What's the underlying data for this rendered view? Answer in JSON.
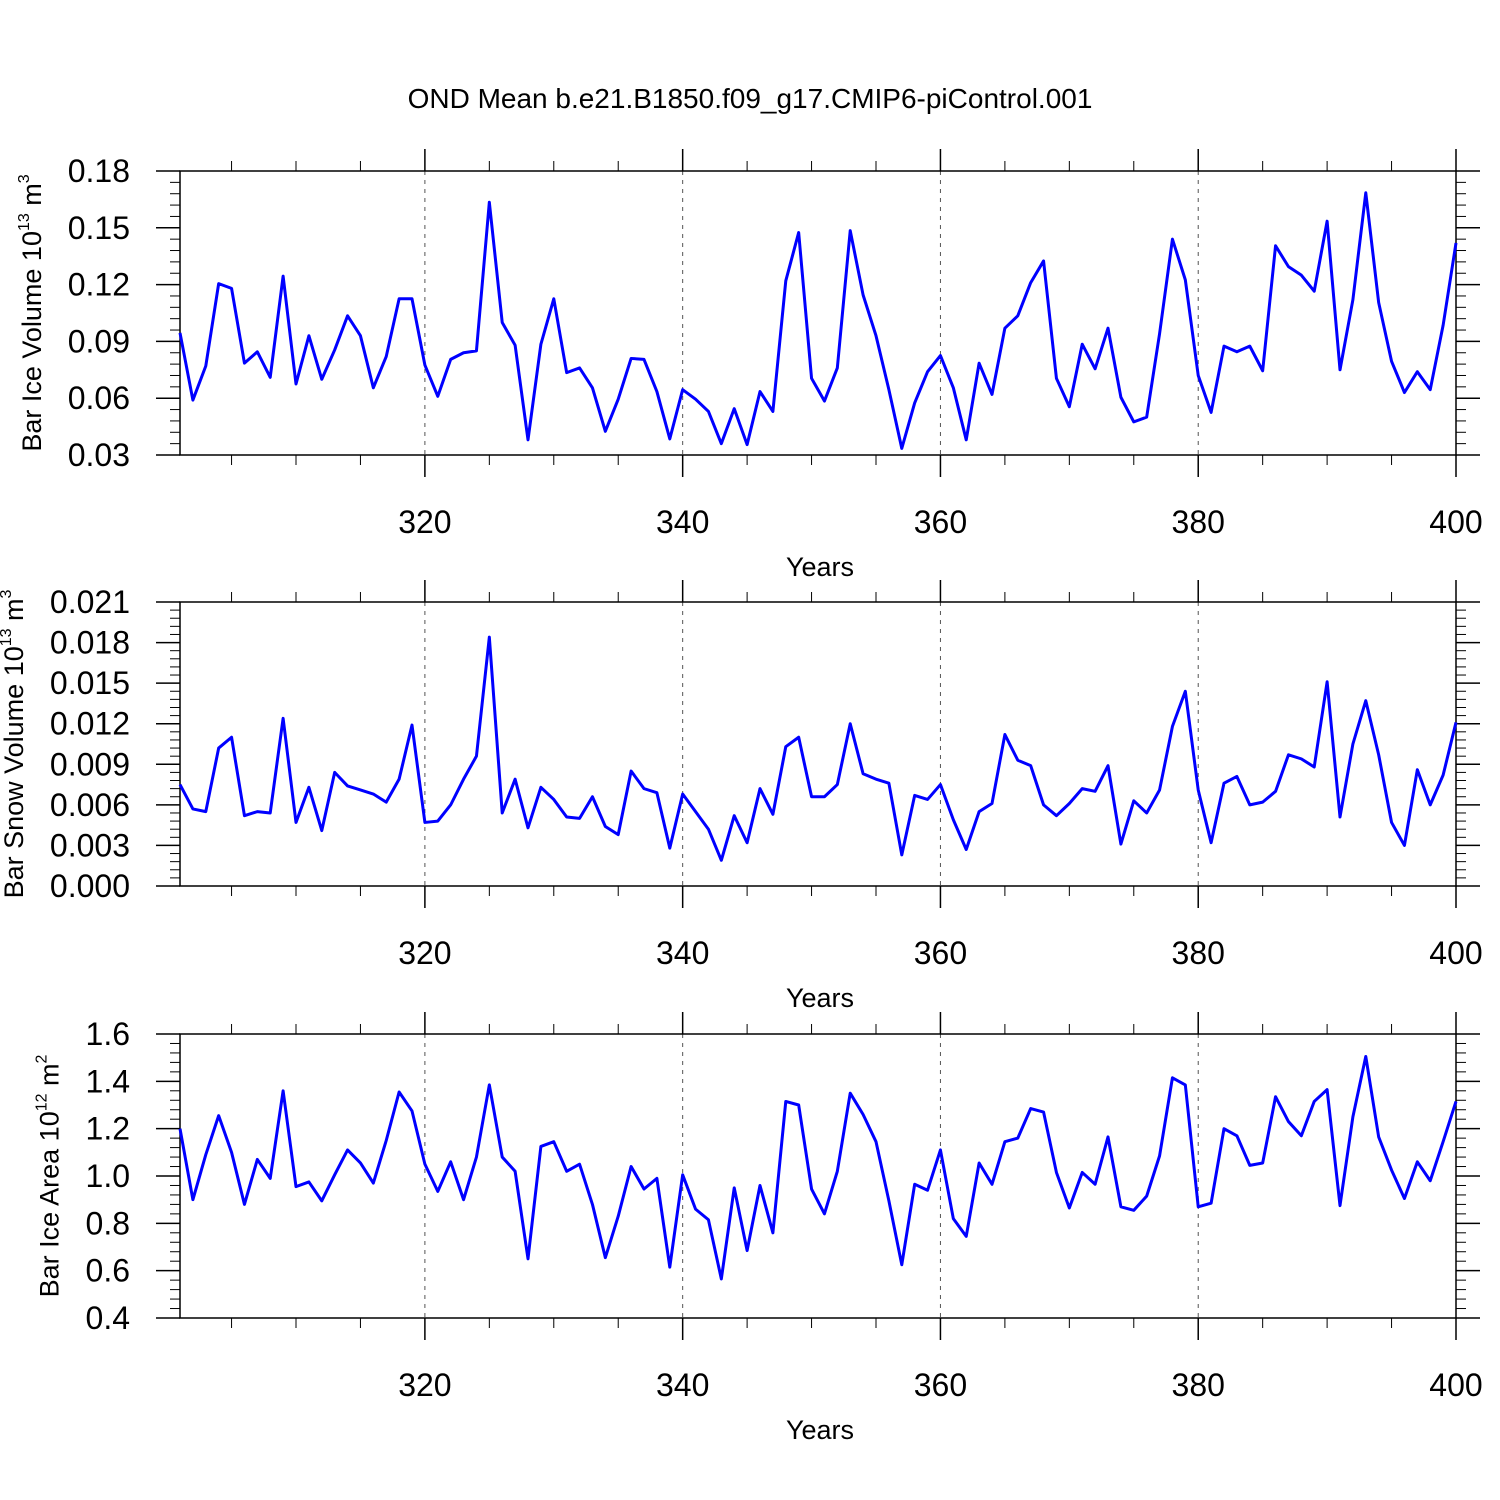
{
  "title": "OND Mean b.e21.B1850.f09_g17.CMIP6-piControl.001",
  "line_color": "#0000ff",
  "chart_data": [
    {
      "type": "line",
      "ylabel_prefix": "Bar Ice Volume 10",
      "ylabel_exponent": "13",
      "ylabel_unit": " m",
      "ylabel_unit_exponent": "3",
      "xlabel": "Years",
      "xlim": [
        301,
        400
      ],
      "ylim": [
        0.03,
        0.18
      ],
      "x_ticks": [
        320,
        340,
        360,
        380,
        400
      ],
      "x_tick_labels": [
        "320",
        "340",
        "360",
        "380",
        "400"
      ],
      "y_ticks": [
        0.03,
        0.06,
        0.09,
        0.12,
        0.15,
        0.18
      ],
      "y_tick_labels": [
        "0.03",
        "0.06",
        "0.09",
        "0.12",
        "0.15",
        "0.18"
      ],
      "grid": "vertical dashed at labelled x ticks",
      "series": [
        {
          "x_start": 301,
          "values": [
            0.0945,
            0.059,
            0.077,
            0.1205,
            0.118,
            0.0785,
            0.0845,
            0.071,
            0.1245,
            0.0675,
            0.093,
            0.07,
            0.0855,
            0.1035,
            0.093,
            0.0655,
            0.082,
            0.1125,
            0.1125,
            0.0775,
            0.061,
            0.0805,
            0.084,
            0.085,
            0.1635,
            0.1,
            0.088,
            0.038,
            0.0885,
            0.1125,
            0.0735,
            0.076,
            0.0655,
            0.0425,
            0.0595,
            0.081,
            0.0805,
            0.0635,
            0.0385,
            0.0645,
            0.0595,
            0.053,
            0.036,
            0.0545,
            0.0355,
            0.0635,
            0.053,
            0.122,
            0.1475,
            0.0705,
            0.0585,
            0.076,
            0.1485,
            0.1145,
            0.093,
            0.0645,
            0.0335,
            0.0575,
            0.074,
            0.0825,
            0.0655,
            0.038,
            0.0785,
            0.062,
            0.097,
            0.1035,
            0.121,
            0.1325,
            0.0705,
            0.0555,
            0.0885,
            0.0755,
            0.097,
            0.0605,
            0.0475,
            0.05,
            0.094,
            0.144,
            0.1225,
            0.072,
            0.0525,
            0.0875,
            0.0845,
            0.0875,
            0.0745,
            0.1405,
            0.1295,
            0.125,
            0.1165,
            0.1535,
            0.075,
            0.112,
            0.1685,
            0.1105,
            0.0795,
            0.063,
            0.074,
            0.0645,
            0.0985,
            0.142
          ]
        }
      ]
    },
    {
      "type": "line",
      "ylabel_prefix": "Bar Snow Volume 10",
      "ylabel_exponent": "13",
      "ylabel_unit": " m",
      "ylabel_unit_exponent": "3",
      "xlabel": "Years",
      "xlim": [
        301,
        400
      ],
      "ylim": [
        0.0,
        0.021
      ],
      "x_ticks": [
        320,
        340,
        360,
        380,
        400
      ],
      "x_tick_labels": [
        "320",
        "340",
        "360",
        "380",
        "400"
      ],
      "y_ticks": [
        0.0,
        0.003,
        0.006,
        0.009,
        0.012,
        0.015,
        0.018,
        0.021
      ],
      "y_tick_labels": [
        "0.000",
        "0.003",
        "0.006",
        "0.009",
        "0.012",
        "0.015",
        "0.018",
        "0.021"
      ],
      "grid": "vertical dashed at labelled x ticks",
      "series": [
        {
          "x_start": 301,
          "values": [
            0.0075,
            0.0057,
            0.0055,
            0.0102,
            0.011,
            0.0052,
            0.0055,
            0.0054,
            0.0124,
            0.0047,
            0.0073,
            0.0041,
            0.0084,
            0.0074,
            0.0071,
            0.0068,
            0.0062,
            0.0079,
            0.0119,
            0.0047,
            0.0048,
            0.006,
            0.0079,
            0.0096,
            0.0184,
            0.0054,
            0.0079,
            0.0043,
            0.0073,
            0.0064,
            0.0051,
            0.005,
            0.0066,
            0.0044,
            0.0038,
            0.0085,
            0.0072,
            0.0069,
            0.0028,
            0.0068,
            0.0055,
            0.0042,
            0.0019,
            0.0052,
            0.0032,
            0.0072,
            0.0053,
            0.0103,
            0.011,
            0.0066,
            0.0066,
            0.0075,
            0.012,
            0.0083,
            0.0079,
            0.0076,
            0.0023,
            0.0067,
            0.0064,
            0.0075,
            0.0049,
            0.0027,
            0.0055,
            0.0061,
            0.0112,
            0.0093,
            0.0089,
            0.006,
            0.0052,
            0.0061,
            0.0072,
            0.007,
            0.0089,
            0.0031,
            0.0063,
            0.0054,
            0.0071,
            0.0118,
            0.0144,
            0.0071,
            0.0032,
            0.0076,
            0.0081,
            0.006,
            0.0062,
            0.007,
            0.0097,
            0.0094,
            0.0088,
            0.0151,
            0.0051,
            0.0105,
            0.0137,
            0.0097,
            0.0047,
            0.003,
            0.0086,
            0.006,
            0.0082,
            0.0121
          ]
        }
      ]
    },
    {
      "type": "line",
      "ylabel_prefix": "Bar Ice Area 10",
      "ylabel_exponent": "12",
      "ylabel_unit": " m",
      "ylabel_unit_exponent": "2",
      "xlabel": "Years",
      "xlim": [
        301,
        400
      ],
      "ylim": [
        0.4,
        1.6
      ],
      "x_ticks": [
        320,
        340,
        360,
        380,
        400
      ],
      "x_tick_labels": [
        "320",
        "340",
        "360",
        "380",
        "400"
      ],
      "y_ticks": [
        0.4,
        0.6,
        0.8,
        1.0,
        1.2,
        1.4,
        1.6
      ],
      "y_tick_labels": [
        "0.4",
        "0.6",
        "0.8",
        "1.0",
        "1.2",
        "1.4",
        "1.6"
      ],
      "grid": "vertical dashed at labelled x ticks",
      "series": [
        {
          "x_start": 301,
          "values": [
            1.2,
            0.9,
            1.09,
            1.255,
            1.1,
            0.88,
            1.07,
            0.99,
            1.36,
            0.955,
            0.975,
            0.895,
            1.005,
            1.11,
            1.055,
            0.97,
            1.15,
            1.355,
            1.275,
            1.05,
            0.935,
            1.06,
            0.9,
            1.08,
            1.385,
            1.08,
            1.02,
            0.65,
            1.125,
            1.145,
            1.02,
            1.05,
            0.88,
            0.655,
            0.83,
            1.04,
            0.945,
            0.99,
            0.615,
            1.005,
            0.86,
            0.815,
            0.565,
            0.95,
            0.685,
            0.96,
            0.76,
            1.315,
            1.3,
            0.945,
            0.84,
            1.02,
            1.35,
            1.26,
            1.145,
            0.895,
            0.625,
            0.965,
            0.94,
            1.11,
            0.82,
            0.745,
            1.055,
            0.965,
            1.145,
            1.16,
            1.285,
            1.27,
            1.015,
            0.865,
            1.015,
            0.965,
            1.165,
            0.87,
            0.855,
            0.915,
            1.085,
            1.415,
            1.385,
            0.87,
            0.885,
            1.2,
            1.17,
            1.045,
            1.055,
            1.335,
            1.23,
            1.17,
            1.315,
            1.365,
            0.875,
            1.25,
            1.505,
            1.165,
            1.025,
            0.905,
            1.06,
            0.98,
            1.145,
            1.315
          ]
        }
      ]
    }
  ]
}
